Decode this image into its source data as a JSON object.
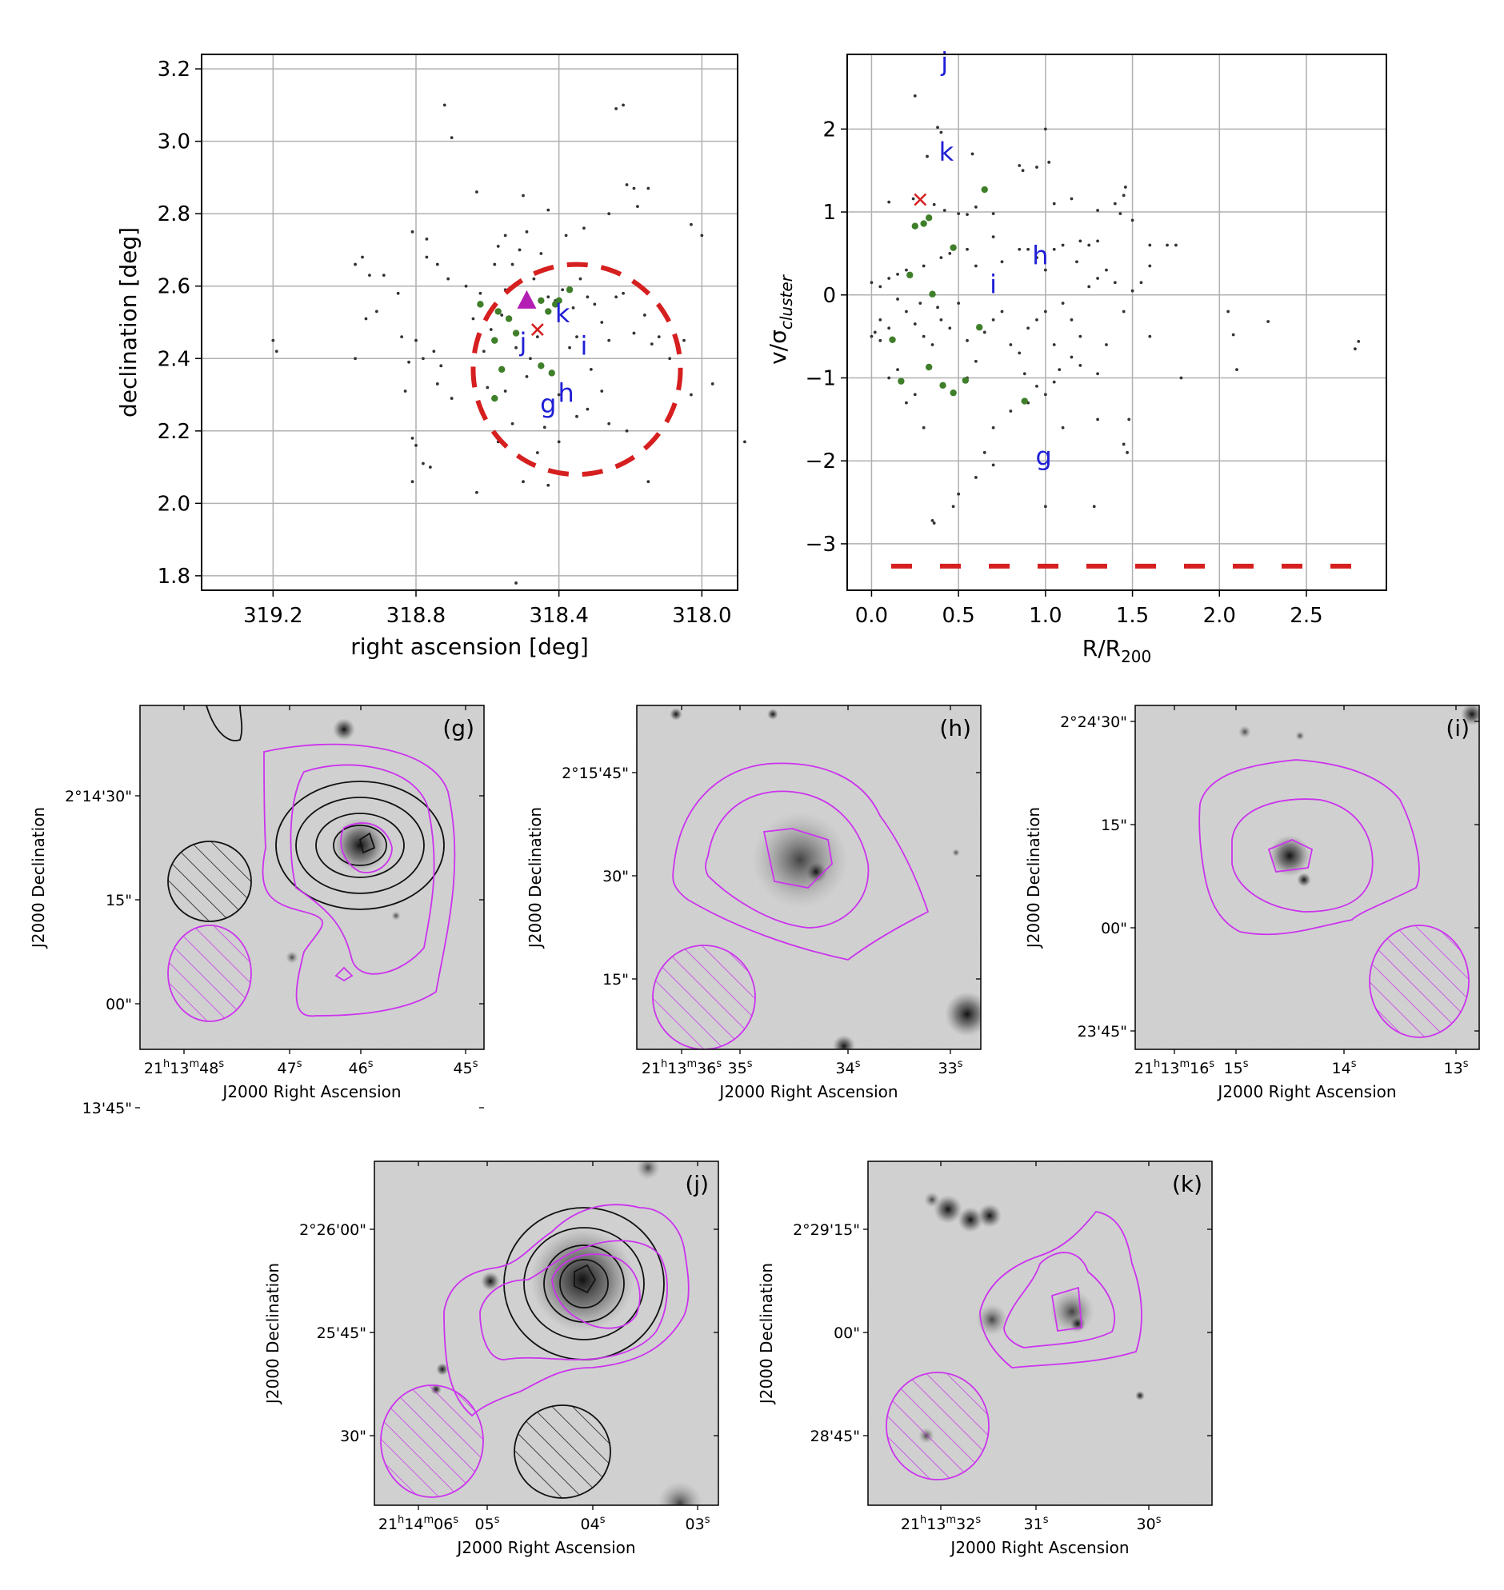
{
  "colors": {
    "members": "#333333",
    "highlight": "#3f7f2a",
    "letters": "#1f1fd6",
    "cross": "#d61f1f",
    "circle": "#d61f1f",
    "triangle": "#b31fb3",
    "magenta": "#cc33ee",
    "black_contour": "#111111"
  },
  "chart_data": [
    {
      "type": "scatter",
      "id": "sky",
      "xlabel": "right ascension [deg]",
      "ylabel": "declination [deg]",
      "xlim": [
        319.4,
        317.9
      ],
      "ylim": [
        1.76,
        3.24
      ],
      "xticks": [
        "319.2",
        "318.8",
        "318.4",
        "318.0"
      ],
      "xtick_values": [
        319.2,
        318.8,
        318.4,
        318.0
      ],
      "yticks": [
        "1.8",
        "2.0",
        "2.2",
        "2.4",
        "2.6",
        "2.8",
        "3.0",
        "3.2"
      ],
      "ytick_values": [
        1.8,
        2.0,
        2.2,
        2.4,
        2.6,
        2.8,
        3.0,
        3.2
      ],
      "grid": true,
      "members": [
        [
          318.72,
          3.1
        ],
        [
          318.7,
          3.01
        ],
        [
          318.24,
          3.09
        ],
        [
          318.22,
          3.1
        ],
        [
          318.21,
          2.88
        ],
        [
          318.19,
          2.87
        ],
        [
          318.15,
          2.87
        ],
        [
          318.03,
          2.77
        ],
        [
          318.0,
          2.74
        ],
        [
          318.26,
          2.8
        ],
        [
          318.18,
          2.82
        ],
        [
          318.63,
          2.86
        ],
        [
          318.5,
          2.85
        ],
        [
          318.43,
          2.81
        ],
        [
          319.2,
          2.45
        ],
        [
          319.19,
          2.42
        ],
        [
          318.97,
          2.66
        ],
        [
          318.95,
          2.68
        ],
        [
          318.93,
          2.63
        ],
        [
          318.97,
          2.4
        ],
        [
          318.94,
          2.51
        ],
        [
          318.91,
          2.53
        ],
        [
          318.89,
          2.63
        ],
        [
          318.85,
          2.58
        ],
        [
          318.81,
          2.75
        ],
        [
          318.77,
          2.73
        ],
        [
          318.77,
          2.68
        ],
        [
          318.74,
          2.66
        ],
        [
          318.71,
          2.62
        ],
        [
          318.84,
          2.46
        ],
        [
          318.8,
          2.45
        ],
        [
          318.82,
          2.39
        ],
        [
          318.78,
          2.4
        ],
        [
          318.75,
          2.42
        ],
        [
          318.73,
          2.38
        ],
        [
          318.74,
          2.33
        ],
        [
          318.83,
          2.31
        ],
        [
          318.81,
          2.18
        ],
        [
          318.8,
          2.16
        ],
        [
          318.78,
          2.11
        ],
        [
          318.76,
          2.1
        ],
        [
          318.81,
          2.06
        ],
        [
          318.63,
          2.03
        ],
        [
          318.6,
          2.32
        ],
        [
          318.57,
          2.17
        ],
        [
          318.55,
          2.31
        ],
        [
          318.53,
          2.22
        ],
        [
          318.5,
          2.06
        ],
        [
          318.43,
          2.05
        ],
        [
          318.57,
          2.71
        ],
        [
          318.55,
          2.74
        ],
        [
          318.53,
          2.66
        ],
        [
          318.51,
          2.7
        ],
        [
          318.49,
          2.75
        ],
        [
          318.47,
          2.62
        ],
        [
          318.45,
          2.69
        ],
        [
          318.43,
          2.57
        ],
        [
          318.42,
          2.65
        ],
        [
          318.41,
          2.56
        ],
        [
          318.39,
          2.59
        ],
        [
          318.36,
          2.54
        ],
        [
          318.34,
          2.62
        ],
        [
          318.32,
          2.57
        ],
        [
          318.3,
          2.55
        ],
        [
          318.28,
          2.5
        ],
        [
          318.26,
          2.45
        ],
        [
          318.24,
          2.57
        ],
        [
          318.22,
          2.58
        ],
        [
          318.19,
          2.47
        ],
        [
          318.16,
          2.52
        ],
        [
          318.14,
          2.44
        ],
        [
          318.12,
          2.46
        ],
        [
          318.09,
          2.4
        ],
        [
          318.07,
          2.44
        ],
        [
          318.05,
          2.45
        ],
        [
          318.03,
          2.3
        ],
        [
          317.97,
          2.33
        ],
        [
          318.31,
          2.37
        ],
        [
          318.28,
          2.31
        ],
        [
          318.26,
          2.22
        ],
        [
          318.21,
          2.2
        ],
        [
          318.15,
          2.06
        ],
        [
          318.35,
          2.24
        ],
        [
          318.4,
          2.17
        ],
        [
          318.44,
          2.21
        ],
        [
          318.46,
          2.14
        ],
        [
          318.61,
          2.42
        ],
        [
          318.64,
          2.51
        ],
        [
          318.62,
          2.58
        ],
        [
          318.59,
          2.48
        ],
        [
          318.56,
          2.52
        ],
        [
          318.52,
          2.43
        ],
        [
          318.48,
          2.4
        ],
        [
          318.46,
          2.46
        ],
        [
          318.49,
          2.35
        ],
        [
          318.4,
          2.3
        ],
        [
          318.37,
          2.43
        ],
        [
          318.35,
          2.46
        ],
        [
          318.32,
          2.26
        ],
        [
          318.55,
          2.59
        ],
        [
          318.52,
          1.78
        ],
        [
          317.88,
          2.17
        ],
        [
          318.66,
          2.6
        ],
        [
          318.7,
          2.29
        ],
        [
          318.58,
          2.66
        ],
        [
          318.38,
          2.74
        ],
        [
          318.33,
          2.76
        ]
      ],
      "highlighted": [
        [
          318.62,
          2.55
        ],
        [
          318.57,
          2.53
        ],
        [
          318.54,
          2.51
        ],
        [
          318.52,
          2.47
        ],
        [
          318.58,
          2.45
        ],
        [
          318.56,
          2.37
        ],
        [
          318.58,
          2.29
        ],
        [
          318.45,
          2.56
        ],
        [
          318.43,
          2.53
        ],
        [
          318.41,
          2.55
        ],
        [
          318.4,
          2.56
        ],
        [
          318.37,
          2.59
        ],
        [
          318.45,
          2.38
        ],
        [
          318.42,
          2.36
        ]
      ],
      "cross": [
        318.46,
        2.48
      ],
      "triangle": [
        318.49,
        2.56
      ],
      "circle": {
        "center": [
          318.35,
          2.37
        ],
        "radius_deg": 0.29
      },
      "labels": [
        {
          "text": "j",
          "x": 318.5,
          "y": 2.42
        },
        {
          "text": "k",
          "x": 318.39,
          "y": 2.5
        },
        {
          "text": "i",
          "x": 318.33,
          "y": 2.41
        },
        {
          "text": "g",
          "x": 318.43,
          "y": 2.25
        },
        {
          "text": "h",
          "x": 318.38,
          "y": 2.28
        }
      ]
    },
    {
      "type": "scatter",
      "id": "phase",
      "xlabel": "R/R",
      "xlabel_sub": "200",
      "ylabel": "v/σ",
      "ylabel_sub": "cluster",
      "xlim": [
        -0.14,
        2.96
      ],
      "ylim": [
        -3.56,
        2.9
      ],
      "xticks": [
        "0.0",
        "0.5",
        "1.0",
        "1.5",
        "2.0",
        "2.5"
      ],
      "xtick_values": [
        0.0,
        0.5,
        1.0,
        1.5,
        2.0,
        2.5
      ],
      "yticks": [
        "2",
        "1",
        "0",
        "−1",
        "−2",
        "−3"
      ],
      "ytick_values": [
        2,
        1,
        0,
        -1,
        -2,
        -3
      ],
      "grid": true,
      "dashed_line_y": -3.27,
      "members": [
        [
          0.25,
          2.4
        ],
        [
          0.38,
          2.02
        ],
        [
          0.4,
          1.96
        ],
        [
          0.32,
          1.67
        ],
        [
          0.58,
          1.7
        ],
        [
          1.0,
          2.0
        ],
        [
          0.85,
          1.56
        ],
        [
          0.87,
          1.5
        ],
        [
          0.95,
          1.54
        ],
        [
          1.02,
          1.6
        ],
        [
          0.1,
          1.12
        ],
        [
          0.24,
          1.16
        ],
        [
          0.36,
          1.09
        ],
        [
          0.42,
          1.02
        ],
        [
          0.5,
          0.98
        ],
        [
          0.55,
          0.97
        ],
        [
          0.6,
          1.06
        ],
        [
          0.7,
          0.98
        ],
        [
          0.7,
          0.7
        ],
        [
          1.05,
          1.1
        ],
        [
          1.15,
          1.16
        ],
        [
          1.3,
          1.02
        ],
        [
          1.4,
          1.1
        ],
        [
          1.45,
          1.2
        ],
        [
          1.46,
          1.3
        ],
        [
          1.43,
          0.98
        ],
        [
          1.5,
          0.9
        ],
        [
          1.6,
          0.6
        ],
        [
          1.7,
          0.6
        ],
        [
          1.75,
          0.6
        ],
        [
          1.2,
          0.65
        ],
        [
          1.25,
          0.6
        ],
        [
          1.3,
          0.65
        ],
        [
          1.05,
          0.55
        ],
        [
          1.1,
          0.6
        ],
        [
          0.95,
          0.45
        ],
        [
          0.9,
          0.55
        ],
        [
          0.85,
          0.55
        ],
        [
          0.75,
          0.4
        ],
        [
          0.6,
          0.35
        ],
        [
          0.55,
          0.55
        ],
        [
          0.45,
          0.5
        ],
        [
          0.4,
          0.45
        ],
        [
          0.3,
          0.35
        ],
        [
          0.2,
          0.3
        ],
        [
          0.15,
          0.25
        ],
        [
          0.0,
          0.15
        ],
        [
          0.05,
          0.1
        ],
        [
          0.1,
          0.2
        ],
        [
          0.15,
          -0.05
        ],
        [
          0.05,
          -0.3
        ],
        [
          0.0,
          -0.5
        ],
        [
          0.02,
          -0.45
        ],
        [
          0.1,
          -0.4
        ],
        [
          0.2,
          -0.2
        ],
        [
          0.25,
          -0.35
        ],
        [
          0.3,
          -0.5
        ],
        [
          0.35,
          -0.6
        ],
        [
          0.4,
          -0.3
        ],
        [
          0.45,
          -0.4
        ],
        [
          0.5,
          -0.1
        ],
        [
          0.55,
          -0.55
        ],
        [
          0.6,
          -0.8
        ],
        [
          0.65,
          -0.45
        ],
        [
          0.7,
          -0.3
        ],
        [
          0.75,
          -0.2
        ],
        [
          0.8,
          -0.6
        ],
        [
          0.85,
          -0.7
        ],
        [
          0.9,
          -0.4
        ],
        [
          0.95,
          -0.3
        ],
        [
          1.0,
          -0.2
        ],
        [
          1.05,
          -0.6
        ],
        [
          1.1,
          -0.1
        ],
        [
          1.15,
          -0.3
        ],
        [
          1.2,
          -0.5
        ],
        [
          1.25,
          0.1
        ],
        [
          1.3,
          0.2
        ],
        [
          1.35,
          0.3
        ],
        [
          1.4,
          0.15
        ],
        [
          1.45,
          -0.2
        ],
        [
          1.5,
          0.05
        ],
        [
          1.55,
          0.15
        ],
        [
          1.6,
          0.35
        ],
        [
          1.35,
          -0.6
        ],
        [
          1.3,
          -0.95
        ],
        [
          1.2,
          -0.85
        ],
        [
          1.15,
          -0.75
        ],
        [
          1.08,
          -0.9
        ],
        [
          1.05,
          -1.05
        ],
        [
          1.0,
          -1.2
        ],
        [
          0.95,
          -1.1
        ],
        [
          0.9,
          -1.3
        ],
        [
          0.88,
          -0.95
        ],
        [
          0.8,
          -1.4
        ],
        [
          0.7,
          -1.6
        ],
        [
          0.65,
          -1.9
        ],
        [
          0.6,
          -2.2
        ],
        [
          0.5,
          -2.4
        ],
        [
          0.47,
          -2.55
        ],
        [
          0.35,
          -2.72
        ],
        [
          0.36,
          -2.75
        ],
        [
          0.2,
          -1.3
        ],
        [
          0.25,
          -1.2
        ],
        [
          0.15,
          -0.9
        ],
        [
          0.1,
          -1.0
        ],
        [
          0.3,
          -1.6
        ],
        [
          1.3,
          -1.5
        ],
        [
          1.45,
          -1.8
        ],
        [
          1.47,
          -1.9
        ],
        [
          1.0,
          -2.55
        ],
        [
          1.28,
          -2.55
        ],
        [
          1.1,
          -1.6
        ],
        [
          0.7,
          -2.05
        ],
        [
          2.05,
          -0.2
        ],
        [
          2.08,
          -0.48
        ],
        [
          2.28,
          -0.32
        ],
        [
          2.78,
          -0.65
        ],
        [
          2.8,
          -0.56
        ],
        [
          1.78,
          -1.0
        ],
        [
          2.1,
          -0.9
        ],
        [
          1.48,
          -1.5
        ],
        [
          1.6,
          -0.5
        ],
        [
          0.55,
          -1.0
        ],
        [
          0.28,
          -0.1
        ],
        [
          0.38,
          -0.15
        ],
        [
          0.05,
          -0.55
        ],
        [
          1.0,
          0.3
        ],
        [
          1.18,
          0.4
        ]
      ],
      "highlighted": [
        [
          0.65,
          1.27
        ],
        [
          0.25,
          0.83
        ],
        [
          0.3,
          0.86
        ],
        [
          0.33,
          0.93
        ],
        [
          0.47,
          0.57
        ],
        [
          0.22,
          0.24
        ],
        [
          0.35,
          0.01
        ],
        [
          0.62,
          -0.39
        ],
        [
          0.12,
          -0.54
        ],
        [
          0.33,
          -0.87
        ],
        [
          0.17,
          -1.04
        ],
        [
          0.41,
          -1.09
        ],
        [
          0.47,
          -1.18
        ],
        [
          0.54,
          -1.03
        ],
        [
          0.88,
          -1.28
        ]
      ],
      "cross": [
        0.28,
        1.15
      ],
      "labels": [
        {
          "text": "j",
          "x": 0.42,
          "y": 2.7
        },
        {
          "text": "k",
          "x": 0.43,
          "y": 1.62
        },
        {
          "text": "h",
          "x": 0.97,
          "y": 0.37
        },
        {
          "text": "i",
          "x": 0.7,
          "y": 0.02
        },
        {
          "text": "g",
          "x": 0.99,
          "y": -2.05
        }
      ]
    }
  ],
  "cutouts": [
    {
      "id": "g",
      "panel_label": "(g)",
      "xlabel": "J2000 Right Ascension",
      "ylabel": "J2000 Declination",
      "yticks": [
        "2°14'30\"",
        "15\"",
        "00\"",
        "13'45\""
      ],
      "xticks": [
        {
          "h": "21",
          "m": "13",
          "s": "48",
          "type": "full"
        },
        {
          "s": "47"
        },
        {
          "s": "46"
        },
        {
          "s": "45"
        }
      ]
    },
    {
      "id": "h",
      "panel_label": "(h)",
      "xlabel": "J2000 Right Ascension",
      "ylabel": "J2000 Declination",
      "yticks": [
        "2°15'45\"",
        "30\"",
        "15\""
      ],
      "xticks": [
        {
          "h": "21",
          "m": "13",
          "s": "36",
          "type": "full"
        },
        {
          "s": "35"
        },
        {
          "s": "34"
        },
        {
          "s": "33"
        }
      ]
    },
    {
      "id": "i",
      "panel_label": "(i)",
      "xlabel": "J2000 Right Ascension",
      "ylabel": "J2000 Declination",
      "yticks": [
        "2°24'30\"",
        "15\"",
        "00\"",
        "23'45\""
      ],
      "xticks": [
        {
          "h": "21",
          "m": "13",
          "s": "16",
          "type": "full"
        },
        {
          "s": "15"
        },
        {
          "s": "14"
        },
        {
          "s": "13"
        }
      ]
    },
    {
      "id": "j",
      "panel_label": "(j)",
      "xlabel": "J2000 Right Ascension",
      "ylabel": "J2000 Declination",
      "yticks": [
        "2°26'00\"",
        "25'45\"",
        "30\""
      ],
      "xticks": [
        {
          "h": "21",
          "m": "14",
          "s": "06",
          "type": "full"
        },
        {
          "s": "05"
        },
        {
          "s": "04"
        },
        {
          "s": "03"
        }
      ]
    },
    {
      "id": "k",
      "panel_label": "(k)",
      "xlabel": "J2000 Right Ascension",
      "ylabel": "J2000 Declination",
      "yticks": [
        "2°29'15\"",
        "00\"",
        "28'45\""
      ],
      "xticks": [
        {
          "h": "21",
          "m": "13",
          "s": "32",
          "type": "full"
        },
        {
          "s": "31"
        },
        {
          "s": "30"
        }
      ]
    }
  ]
}
